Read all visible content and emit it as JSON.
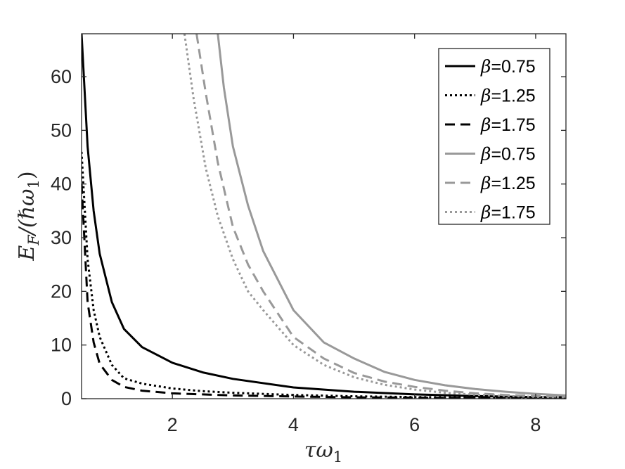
{
  "chart_data": {
    "type": "line",
    "xlabel": "τω",
    "xlabel_sub": "1",
    "ylabel_main": "E",
    "ylabel_sub": "F",
    "ylabel_rest": "/(ℏω",
    "ylabel_sub2": "1",
    "ylabel_close": ")",
    "xlim": [
      0.5,
      8.5
    ],
    "ylim": [
      0,
      68
    ],
    "x_ticks": [
      2,
      4,
      6,
      8
    ],
    "y_ticks": [
      0,
      10,
      20,
      30,
      40,
      50,
      60
    ],
    "grid": false,
    "legend_position": "top-right",
    "colors": {
      "black": "#000000",
      "gray": "#999999"
    },
    "series": [
      {
        "name": "β=0.75",
        "color": "#000000",
        "style": "solid",
        "x": [
          0.5,
          0.6,
          0.7,
          0.8,
          1.0,
          1.2,
          1.5,
          2.0,
          2.5,
          3.0,
          4.0,
          5.0,
          6.0,
          7.0,
          8.0,
          8.5
        ],
        "y": [
          68,
          47,
          35,
          27,
          18,
          13,
          9.6,
          6.7,
          4.9,
          3.7,
          2.1,
          1.3,
          0.8,
          0.5,
          0.3,
          0.25
        ]
      },
      {
        "name": "β=1.25",
        "color": "#000000",
        "style": "dotted",
        "x": [
          0.5,
          0.6,
          0.7,
          0.8,
          1.0,
          1.2,
          1.5,
          2.0,
          2.5,
          3.0,
          4.0,
          5.0,
          6.0,
          7.0,
          8.0,
          8.5
        ],
        "y": [
          46,
          26,
          16.5,
          11.5,
          6.3,
          3.8,
          2.8,
          1.9,
          1.4,
          1.1,
          0.7,
          0.45,
          0.3,
          0.2,
          0.12,
          0.1
        ]
      },
      {
        "name": "β=1.75",
        "color": "#000000",
        "style": "dashed",
        "x": [
          0.5,
          0.6,
          0.7,
          0.8,
          1.0,
          1.2,
          1.5,
          2.0,
          2.5,
          3.0,
          4.0,
          5.0,
          6.0,
          7.0,
          8.0,
          8.5
        ],
        "y": [
          40,
          18,
          10.5,
          6.5,
          3.5,
          2.2,
          1.5,
          1.0,
          0.8,
          0.6,
          0.4,
          0.25,
          0.18,
          0.12,
          0.08,
          0.06
        ]
      },
      {
        "name": "β=0.75",
        "color": "#999999",
        "style": "solid",
        "x": [
          2.75,
          2.85,
          3.0,
          3.25,
          3.5,
          4.0,
          4.5,
          5.0,
          5.5,
          6.0,
          6.5,
          7.0,
          7.5,
          8.0,
          8.5
        ],
        "y": [
          68,
          58,
          47,
          36,
          27.5,
          16.5,
          10.5,
          7.5,
          5.0,
          3.5,
          2.5,
          1.8,
          1.3,
          0.9,
          0.6
        ]
      },
      {
        "name": "β=1.25",
        "color": "#999999",
        "style": "dashed",
        "x": [
          2.4,
          2.55,
          2.75,
          3.0,
          3.25,
          3.5,
          4.0,
          4.5,
          5.0,
          5.5,
          6.0,
          6.5,
          7.0,
          7.5,
          8.0,
          8.5
        ],
        "y": [
          68,
          57,
          44,
          32,
          25,
          20,
          11.5,
          7.5,
          4.8,
          3.2,
          2.2,
          1.5,
          1.0,
          0.7,
          0.5,
          0.35
        ]
      },
      {
        "name": "β=1.75",
        "color": "#999999",
        "style": "dotted",
        "x": [
          2.2,
          2.35,
          2.55,
          2.75,
          3.0,
          3.25,
          3.5,
          4.0,
          4.5,
          5.0,
          5.5,
          6.0,
          6.5,
          7.0,
          7.5,
          8.0,
          8.5
        ],
        "y": [
          68,
          56,
          43,
          34,
          26,
          20,
          16.5,
          10,
          6.3,
          4.0,
          2.6,
          1.7,
          1.1,
          0.75,
          0.5,
          0.35,
          0.25
        ]
      }
    ]
  }
}
